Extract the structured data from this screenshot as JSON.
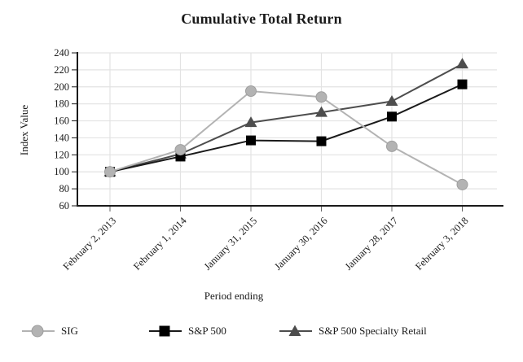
{
  "chart_data": {
    "type": "line",
    "title": "Cumulative Total Return",
    "xlabel": "Period ending",
    "ylabel": "Index Value",
    "categories": [
      "February 2, 2013",
      "February 1, 2014",
      "January 31, 2015",
      "January 30, 2016",
      "January 28, 2017",
      "February 3, 2018"
    ],
    "series": [
      {
        "name": "SIG",
        "marker": "circle",
        "color": "#b3b3b3",
        "line_color": "#b3b3b3",
        "values": [
          100,
          126,
          195,
          188,
          130,
          85
        ]
      },
      {
        "name": "S&P 500",
        "marker": "square",
        "color": "#000000",
        "line_color": "#1a1a1a",
        "values": [
          100,
          118,
          137,
          136,
          165,
          203
        ]
      },
      {
        "name": "S&P 500 Specialty Retail",
        "marker": "triangle",
        "color": "#4d4d4d",
        "line_color": "#4d4d4d",
        "values": [
          100,
          121,
          158,
          170,
          183,
          227
        ]
      }
    ],
    "ylim": [
      60,
      240
    ],
    "yticks": [
      60,
      80,
      100,
      120,
      140,
      160,
      180,
      200,
      220,
      240
    ],
    "ytick_step": 20,
    "grid": true,
    "legend_position": "bottom"
  },
  "colors": {
    "grid": "#e3e3e3",
    "axis": "#1a1a1a",
    "tick": "#666666",
    "background": "#ffffff"
  }
}
